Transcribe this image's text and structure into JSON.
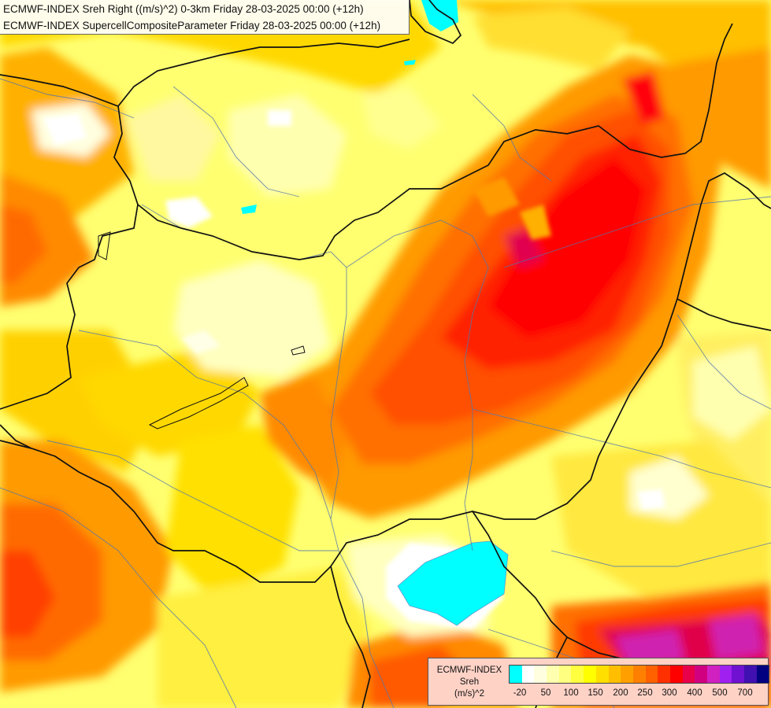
{
  "title": {
    "line1": "ECMWF-INDEX Sreh Right ((m/s)^2) 0-3km Friday 28-03-2025 00:00 (+12h)",
    "line2": "ECMWF-INDEX SupercellCompositeParameter Friday 28-03-2025 00:00 (+12h)"
  },
  "legend": {
    "title_line1": "ECMWF-INDEX",
    "title_line2": "Sreh",
    "title_line3": "(m/s)^2",
    "colors": [
      "#00ffff",
      "#ffffff",
      "#ffffe0",
      "#ffffb0",
      "#ffff80",
      "#ffff40",
      "#ffff00",
      "#ffdf00",
      "#ffbf00",
      "#ffa000",
      "#ff8000",
      "#ff6000",
      "#ff3000",
      "#ff0000",
      "#e8004a",
      "#d00080",
      "#d020c0",
      "#a020f0",
      "#7010d0",
      "#4010b0",
      "#000080"
    ],
    "ticks": [
      "-20",
      "50",
      "100",
      "150",
      "200",
      "250",
      "300",
      "400",
      "500",
      "700"
    ]
  },
  "colors": {
    "cyan": "#00ffff",
    "white": "#ffffff",
    "pale": "#ffffc0",
    "light_yellow": "#ffff80",
    "yellow": "#ffff00",
    "gold": "#ffc800",
    "orange": "#ff9a00",
    "dark_orange": "#ff6a00",
    "red_orange": "#ff3a00",
    "red": "#ff0000",
    "crimson": "#e00050",
    "magenta": "#d020b0"
  }
}
